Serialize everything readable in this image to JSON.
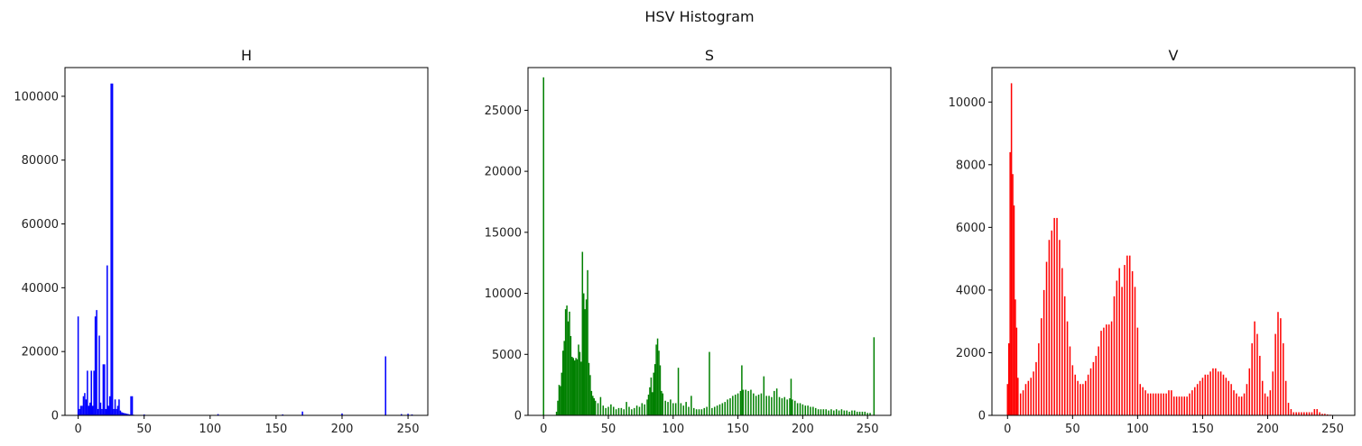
{
  "figure_title": "HSV Histogram",
  "chart_data": [
    {
      "type": "bar",
      "title": "H",
      "color": "#0000ff",
      "xlim": [
        -10,
        265
      ],
      "ylim": [
        0,
        109000
      ],
      "xticks": [
        0,
        50,
        100,
        150,
        200,
        250
      ],
      "yticks": [
        0,
        20000,
        40000,
        60000,
        80000,
        100000
      ],
      "x": [
        0,
        1,
        2,
        3,
        4,
        5,
        6,
        7,
        8,
        9,
        10,
        11,
        12,
        13,
        14,
        15,
        16,
        17,
        18,
        19,
        20,
        21,
        22,
        23,
        24,
        25,
        26,
        27,
        28,
        29,
        30,
        31,
        32,
        33,
        34,
        35,
        36,
        37,
        38,
        39,
        40,
        41,
        42,
        50,
        106,
        155,
        170,
        200,
        233,
        245,
        250,
        253
      ],
      "values": [
        31000,
        2000,
        3000,
        3000,
        6000,
        7000,
        5000,
        14000,
        3000,
        4000,
        14000,
        3000,
        14000,
        31000,
        33000,
        2000,
        25000,
        4000,
        2000,
        16000,
        16000,
        2000,
        47000,
        3000,
        6000,
        104000,
        104000,
        2000,
        5000,
        2000,
        3000,
        5000,
        1500,
        1000,
        800,
        700,
        600,
        500,
        400,
        300,
        6000,
        6000,
        200,
        300,
        400,
        300,
        1200,
        600,
        18500,
        400,
        500,
        300
      ]
    },
    {
      "type": "bar",
      "title": "S",
      "color": "#008000",
      "xlim": [
        -12,
        268
      ],
      "ylim": [
        0,
        28500
      ],
      "xticks": [
        0,
        50,
        100,
        150,
        200,
        250
      ],
      "yticks": [
        0,
        5000,
        10000,
        15000,
        20000,
        25000
      ],
      "x": [
        0,
        10,
        11,
        12,
        13,
        14,
        15,
        16,
        17,
        18,
        19,
        20,
        21,
        22,
        23,
        24,
        25,
        26,
        27,
        28,
        29,
        30,
        31,
        32,
        33,
        34,
        35,
        36,
        37,
        38,
        39,
        40,
        42,
        44,
        46,
        48,
        50,
        52,
        54,
        56,
        58,
        60,
        62,
        64,
        66,
        68,
        70,
        72,
        74,
        76,
        78,
        80,
        81,
        82,
        83,
        84,
        85,
        86,
        87,
        88,
        89,
        90,
        91,
        92,
        94,
        96,
        98,
        100,
        102,
        104,
        106,
        108,
        110,
        112,
        114,
        116,
        118,
        120,
        122,
        124,
        126,
        128,
        130,
        132,
        134,
        136,
        138,
        140,
        142,
        144,
        146,
        148,
        150,
        152,
        153,
        154,
        156,
        158,
        160,
        162,
        164,
        166,
        168,
        170,
        172,
        174,
        176,
        178,
        180,
        182,
        184,
        186,
        188,
        190,
        191,
        192,
        194,
        196,
        198,
        200,
        202,
        204,
        206,
        208,
        210,
        212,
        214,
        216,
        218,
        220,
        222,
        224,
        226,
        228,
        230,
        232,
        234,
        236,
        238,
        240,
        242,
        244,
        246,
        248,
        250,
        252,
        255
      ],
      "values": [
        27700,
        300,
        1200,
        2500,
        2400,
        3500,
        5300,
        6100,
        8700,
        9000,
        7700,
        8500,
        6500,
        4800,
        4700,
        4500,
        4700,
        4600,
        5800,
        5200,
        4400,
        13400,
        10000,
        8700,
        9500,
        11900,
        4300,
        3300,
        2000,
        1600,
        1400,
        1200,
        1000,
        1500,
        800,
        600,
        700,
        900,
        700,
        500,
        600,
        600,
        500,
        1100,
        700,
        500,
        600,
        800,
        700,
        1000,
        900,
        1300,
        1700,
        2300,
        3100,
        1900,
        3500,
        4200,
        5800,
        6300,
        5300,
        4100,
        2000,
        1800,
        1200,
        1100,
        1300,
        1000,
        1000,
        3900,
        1000,
        800,
        1100,
        700,
        1600,
        600,
        500,
        500,
        500,
        600,
        700,
        5200,
        600,
        700,
        800,
        900,
        1000,
        1100,
        1300,
        1400,
        1600,
        1700,
        1800,
        2000,
        4100,
        2100,
        2100,
        2000,
        2100,
        1800,
        1600,
        1700,
        1800,
        3200,
        1600,
        1600,
        1500,
        2000,
        2200,
        1500,
        1400,
        1500,
        1300,
        1400,
        3000,
        1300,
        1200,
        1000,
        1000,
        900,
        800,
        800,
        700,
        700,
        600,
        500,
        500,
        500,
        500,
        400,
        500,
        400,
        500,
        400,
        500,
        400,
        400,
        300,
        400,
        400,
        300,
        300,
        300,
        300,
        200,
        200,
        6400
      ]
    },
    {
      "type": "bar",
      "title": "V",
      "color": "#ff0000",
      "xlim": [
        -12,
        267
      ],
      "ylim": [
        0,
        11100
      ],
      "xticks": [
        0,
        50,
        100,
        150,
        200,
        250
      ],
      "yticks": [
        0,
        2000,
        4000,
        6000,
        8000,
        10000
      ],
      "x": [
        0,
        1,
        2,
        3,
        4,
        5,
        6,
        7,
        8,
        10,
        12,
        14,
        16,
        18,
        20,
        22,
        24,
        26,
        28,
        30,
        32,
        34,
        36,
        38,
        40,
        42,
        44,
        46,
        48,
        50,
        52,
        54,
        56,
        58,
        60,
        62,
        64,
        66,
        68,
        70,
        72,
        74,
        76,
        78,
        80,
        82,
        84,
        86,
        88,
        90,
        92,
        94,
        96,
        98,
        100,
        102,
        104,
        106,
        108,
        110,
        112,
        114,
        116,
        118,
        120,
        122,
        124,
        126,
        128,
        130,
        132,
        134,
        136,
        138,
        140,
        142,
        144,
        146,
        148,
        150,
        152,
        154,
        156,
        158,
        160,
        162,
        164,
        166,
        168,
        170,
        172,
        174,
        176,
        178,
        180,
        182,
        184,
        186,
        188,
        190,
        192,
        194,
        196,
        198,
        200,
        202,
        204,
        206,
        208,
        210,
        212,
        214,
        216,
        218,
        220,
        222,
        224,
        226,
        228,
        230,
        232,
        234,
        236,
        238,
        240,
        242,
        244,
        246,
        248,
        250
      ],
      "values": [
        1000,
        2300,
        8400,
        10600,
        7700,
        6700,
        3700,
        2800,
        1200,
        700,
        800,
        1000,
        1100,
        1200,
        1400,
        1700,
        2300,
        3100,
        4000,
        4900,
        5600,
        5900,
        6300,
        6300,
        5600,
        4700,
        3800,
        3000,
        2200,
        1600,
        1300,
        1100,
        1000,
        1000,
        1100,
        1300,
        1500,
        1700,
        1900,
        2200,
        2700,
        2800,
        2900,
        2900,
        3000,
        3800,
        4300,
        4700,
        4100,
        4800,
        5100,
        5100,
        4600,
        4100,
        2800,
        1000,
        900,
        800,
        700,
        700,
        700,
        700,
        700,
        700,
        700,
        700,
        800,
        800,
        600,
        600,
        600,
        600,
        600,
        600,
        700,
        800,
        900,
        1000,
        1100,
        1200,
        1300,
        1300,
        1400,
        1500,
        1500,
        1400,
        1400,
        1300,
        1200,
        1100,
        1000,
        800,
        700,
        600,
        600,
        700,
        1000,
        1500,
        2300,
        3000,
        2600,
        1900,
        1100,
        700,
        600,
        800,
        1400,
        2600,
        3300,
        3100,
        2300,
        1100,
        400,
        200,
        100,
        100,
        100,
        100,
        100,
        100,
        100,
        100,
        200,
        200,
        100,
        50,
        50,
        30,
        20,
        10
      ]
    }
  ]
}
